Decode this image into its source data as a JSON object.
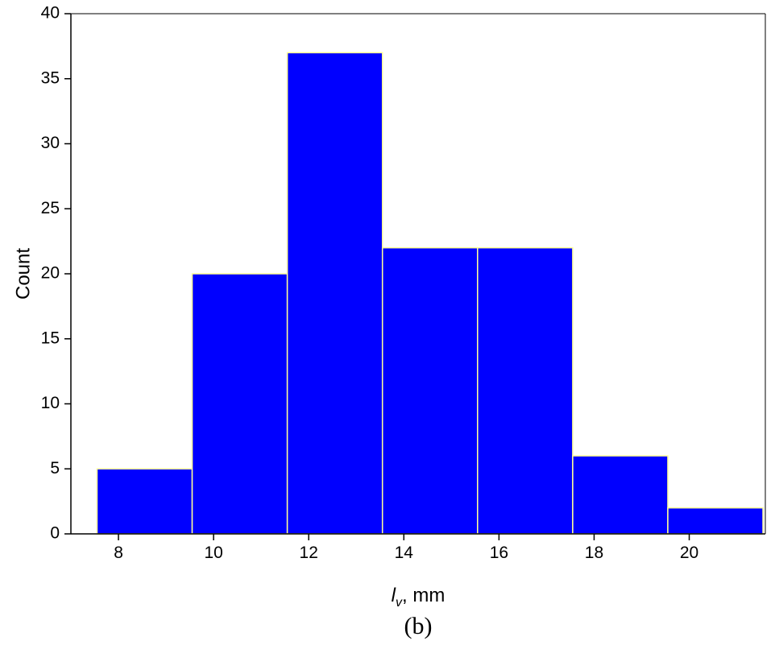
{
  "chart_data": {
    "type": "histogram",
    "y_label": "Count",
    "x_label": {
      "symbol": "l",
      "subscript": "v",
      "unit": ", mm"
    },
    "caption": "(b)",
    "bins": [
      7.55,
      9.55,
      11.55,
      13.55,
      15.55,
      17.55,
      19.55,
      21.55
    ],
    "values": [
      5,
      20,
      37,
      22,
      22,
      6,
      2
    ],
    "color": "#0000ff",
    "edge_color": "#ffff99",
    "xlim": [
      7,
      21.6
    ],
    "ylim": [
      0,
      40
    ],
    "xticks": [
      8,
      10,
      12,
      14,
      16,
      18,
      20
    ],
    "yticks": [
      0,
      5,
      10,
      15,
      20,
      25,
      30,
      35,
      40
    ],
    "grid": false
  }
}
